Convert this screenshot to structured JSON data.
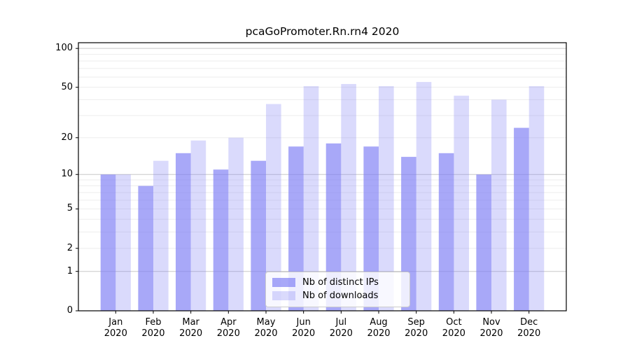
{
  "chart_data": {
    "type": "bar",
    "title": "pcaGoPromoter.Rn.rn4 2020",
    "xlabel": "",
    "ylabel": "",
    "year": "2020",
    "months": [
      "Jan",
      "Feb",
      "Mar",
      "Apr",
      "May",
      "Jun",
      "Jul",
      "Aug",
      "Sep",
      "Oct",
      "Nov",
      "Dec"
    ],
    "series": [
      {
        "name": "Nb of distinct IPs",
        "color": "rgba(123,123,245,0.66)",
        "values": [
          10,
          8,
          15,
          11,
          13,
          17,
          18,
          17,
          14,
          15,
          10,
          24
        ]
      },
      {
        "name": "Nb of downloads",
        "color": "rgba(123,123,245,0.28)",
        "values": [
          10,
          13,
          19,
          20,
          37,
          51,
          53,
          51,
          55,
          43,
          40,
          51
        ]
      }
    ],
    "yscale": "log1p",
    "ylim": [
      0,
      110.7
    ],
    "yticks": [
      100,
      50,
      20,
      10,
      5,
      2,
      1,
      0
    ],
    "gridlines": {
      "minor": [
        2,
        3,
        4,
        5,
        6,
        7,
        8,
        9,
        20,
        30,
        40,
        50,
        60,
        70,
        80,
        90
      ],
      "major": [
        1,
        10,
        100
      ]
    },
    "legend_position": "bottom-center",
    "grid": true,
    "colors": {
      "axis": "#000000",
      "grid_minor": "#ededed",
      "grid_major": "#c8c8c8",
      "tick_label": "#000000"
    }
  }
}
